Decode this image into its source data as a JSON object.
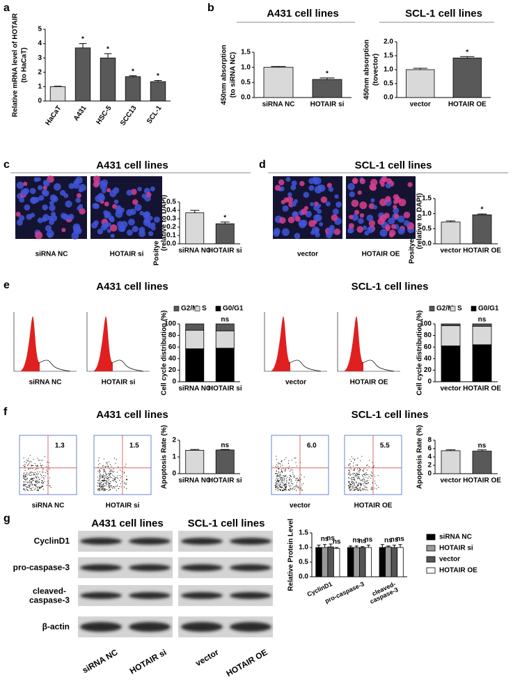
{
  "figure": {
    "panels": [
      {
        "letter": "a"
      },
      {
        "letter": "b"
      },
      {
        "letter": "c",
        "heading": "A431 cell lines",
        "images": [
          "siRNA NC",
          "HOTAIR si"
        ]
      },
      {
        "letter": "d",
        "heading": "SCL-1 cell lines",
        "images": [
          "vector",
          "HOTAIR  OE"
        ]
      },
      {
        "letter": "e",
        "headings": [
          "A431 cell lines",
          "SCL-1 cell lines"
        ],
        "images": [
          "siRNA NC",
          "HOTAIR si",
          "vector",
          "HOTAIR  OE"
        ]
      },
      {
        "letter": "f",
        "headings": [
          "A431 cell lines",
          "SCL-1 cell lines"
        ],
        "images": [
          "siRNA NC",
          "HOTAIR  si",
          "vector",
          "HOTAIR OE"
        ],
        "quadrant_values": [
          "1.3",
          "1.5",
          "6.0",
          "5.5"
        ]
      },
      {
        "letter": "g",
        "headings": [
          "A431 cell lines",
          "SCL-1 cell lines"
        ],
        "blot_rows": [
          "CyclinD1",
          "pro-caspase-3",
          "cleaved-\ncaspase-3",
          "β-actin"
        ],
        "lanes": [
          "siRNA NC",
          "HOTAIR  si",
          "vector",
          "HOTAIR OE"
        ]
      }
    ]
  },
  "chart_data": [
    {
      "type": "bar",
      "ylabel": [
        "Relative mRNA level of HOTAIR",
        "(to HaCaT)"
      ],
      "categories": [
        "HaCaT",
        "A431",
        "HSC-5",
        "SCC13",
        "SCL-1"
      ],
      "values": [
        1.0,
        3.7,
        3.0,
        1.7,
        1.35
      ],
      "errors": [
        0.03,
        0.3,
        0.3,
        0.06,
        0.08
      ],
      "annotations": [
        null,
        "*",
        "*",
        "*",
        "*"
      ],
      "colors": [
        "#d9d9d9",
        "#595959",
        "#595959",
        "#595959",
        "#595959"
      ],
      "ylim": [
        0,
        5
      ],
      "yticks": [
        0,
        1,
        2,
        3,
        4,
        5
      ]
    },
    {
      "type": "bar",
      "title": "A431 cell lines",
      "ylabel": [
        "450nm absorption",
        "(to siRNA NC)"
      ],
      "categories": [
        "siRNA NC",
        "HOTAIR si"
      ],
      "values": [
        1.0,
        0.6
      ],
      "errors": [
        0.03,
        0.05
      ],
      "annotations": [
        null,
        "*"
      ],
      "colors": [
        "#d9d9d9",
        "#595959"
      ],
      "ylim": [
        0,
        1.5
      ],
      "yticks": [
        {
          "value": 0,
          "label": "0.0"
        },
        {
          "value": 0.5,
          "label": "0.5"
        },
        {
          "value": 1,
          "label": "1.0"
        },
        {
          "value": 1.5,
          "label": "1.5"
        }
      ]
    },
    {
      "type": "bar",
      "title": "SCL-1 cell lines",
      "ylabel": [
        "450nm absorption",
        "(tovector)"
      ],
      "categories": [
        "vector",
        "HOTAIR OE"
      ],
      "values": [
        1.0,
        1.42
      ],
      "errors": [
        0.05,
        0.05
      ],
      "annotations": [
        null,
        "*"
      ],
      "colors": [
        "#d9d9d9",
        "#595959"
      ],
      "ylim": [
        0,
        2
      ],
      "yticks": [
        {
          "value": 0,
          "label": "0.0"
        },
        {
          "value": 0.5,
          "label": "0.5"
        },
        {
          "value": 1,
          "label": "1.0"
        },
        {
          "value": 1.5,
          "label": "1.5"
        },
        {
          "value": 2,
          "label": "2.0"
        }
      ]
    },
    {
      "type": "bar",
      "ylabel": [
        "Positye EDU stained cells",
        "(relative to DAPI)"
      ],
      "categories": [
        "siRNA NC",
        "HOTAIR si"
      ],
      "values": [
        0.37,
        0.24
      ],
      "errors": [
        0.03,
        0.02
      ],
      "annotations": [
        null,
        "*"
      ],
      "colors": [
        "#d9d9d9",
        "#595959"
      ],
      "ylim": [
        0,
        0.5
      ],
      "yticks": [
        {
          "value": 0,
          "label": "0.0"
        },
        {
          "value": 0.1,
          "label": "0.1"
        },
        {
          "value": 0.2,
          "label": "0.2"
        },
        {
          "value": 0.3,
          "label": "0.3"
        },
        {
          "value": 0.4,
          "label": "0.4"
        },
        {
          "value": 0.5,
          "label": "0.5"
        }
      ]
    },
    {
      "type": "bar",
      "ylabel": [
        "Positye EDU stained cells",
        "(relative to DAPI)"
      ],
      "categories": [
        "vector",
        "HOTAIR OE"
      ],
      "values": [
        0.72,
        0.96
      ],
      "errors": [
        0.04,
        0.03
      ],
      "annotations": [
        null,
        "*"
      ],
      "colors": [
        "#d9d9d9",
        "#595959"
      ],
      "ylim": [
        0,
        1.5
      ],
      "yticks": [
        {
          "value": 0,
          "label": "0.0"
        },
        {
          "value": 0.5,
          "label": "0.5"
        },
        {
          "value": 1,
          "label": "1.0"
        },
        {
          "value": 1.5,
          "label": "1.5"
        }
      ]
    },
    {
      "type": "bar",
      "stacked": true,
      "legend": "top",
      "ylabel": [
        "Cell cycle distribution (%)"
      ],
      "categories": [
        "siRNA NC",
        "HOTAIR si"
      ],
      "series": [
        {
          "name": "G0/G1",
          "color": "#000000",
          "values": [
            57,
            58
          ],
          "errors": [
            3,
            3
          ]
        },
        {
          "name": "S",
          "color": "#d9d9d9",
          "values": [
            32,
            30
          ],
          "errors": [
            3,
            2
          ]
        },
        {
          "name": "G2/M",
          "color": "#595959",
          "values": [
            11,
            12
          ]
        }
      ],
      "annotations": [
        null,
        "ns"
      ],
      "ylim": [
        0,
        100
      ],
      "yticks": [
        0,
        20,
        40,
        60,
        80,
        100
      ]
    },
    {
      "type": "bar",
      "stacked": true,
      "legend": "top",
      "ylabel": [
        "Cell cycle distribution (%)"
      ],
      "categories": [
        "vector",
        "HOTAIR OE"
      ],
      "series": [
        {
          "name": "G0/G1",
          "color": "#000000",
          "values": [
            62,
            64
          ],
          "errors": [
            2,
            3
          ]
        },
        {
          "name": "S",
          "color": "#d9d9d9",
          "values": [
            35,
            32
          ],
          "errors": [
            2,
            2
          ]
        },
        {
          "name": "G2/M",
          "color": "#595959",
          "values": [
            3,
            4
          ]
        }
      ],
      "annotations": [
        null,
        "ns"
      ],
      "ylim": [
        0,
        100
      ],
      "yticks": [
        0,
        20,
        40,
        60,
        80,
        100
      ]
    },
    {
      "type": "bar",
      "ylabel": [
        "Apoptosis Rate (%)"
      ],
      "categories": [
        "siRNA NC",
        "HOTAIR si"
      ],
      "values": [
        1.4,
        1.42
      ],
      "errors": [
        0.05,
        0.03
      ],
      "annotations": [
        null,
        "ns"
      ],
      "colors": [
        "#d9d9d9",
        "#595959"
      ],
      "ylim": [
        0,
        2
      ],
      "yticks": [
        0,
        1,
        2
      ]
    },
    {
      "type": "bar",
      "ylabel": [
        "Apoptosis Rate (%)"
      ],
      "categories": [
        "vector",
        "HOTAIR OE"
      ],
      "values": [
        5.5,
        5.4
      ],
      "errors": [
        0.2,
        0.3
      ],
      "annotations": [
        null,
        "ns"
      ],
      "colors": [
        "#d9d9d9",
        "#595959"
      ],
      "ylim": [
        0,
        8
      ],
      "yticks": [
        0,
        2,
        4,
        6,
        8
      ]
    },
    {
      "type": "bar",
      "legend": "right",
      "ylabel": [
        "Relative Protein Level"
      ],
      "categories": [
        "CyclinD1",
        "pro-caspase-3",
        "cleaved-\ncaspase-3"
      ],
      "series": [
        {
          "name": "siRNA NC",
          "color": "#000000",
          "values": [
            1.0,
            1.0,
            1.0
          ],
          "errors": [
            0.08,
            0.05,
            0.1
          ]
        },
        {
          "name": "HOTAIR si",
          "color": "#999999",
          "values": [
            1.0,
            1.0,
            1.02
          ],
          "errors": [
            0.1,
            0.05,
            0.03
          ],
          "annotations": [
            "ns",
            "ns",
            "ns"
          ]
        },
        {
          "name": "vector",
          "color": "#555555",
          "values": [
            1.02,
            1.0,
            1.0
          ],
          "errors": [
            0.1,
            0.03,
            0.08
          ],
          "annotations": [
            "ns",
            "ns",
            "ns"
          ]
        },
        {
          "name": "HOTAIR OE",
          "color": "#ffffff",
          "values": [
            0.97,
            1.0,
            1.0
          ],
          "errors": [
            0.03,
            0.08,
            0.1
          ],
          "annotations": [
            "ns",
            "ns",
            "ns"
          ]
        }
      ],
      "ylim": [
        0,
        1.5
      ],
      "yticks": [
        {
          "value": 0,
          "label": "0.0"
        },
        {
          "value": 0.5,
          "label": "0.5"
        },
        {
          "value": 1,
          "label": "1.0"
        },
        {
          "value": 1.5,
          "label": "1.5"
        }
      ]
    }
  ]
}
